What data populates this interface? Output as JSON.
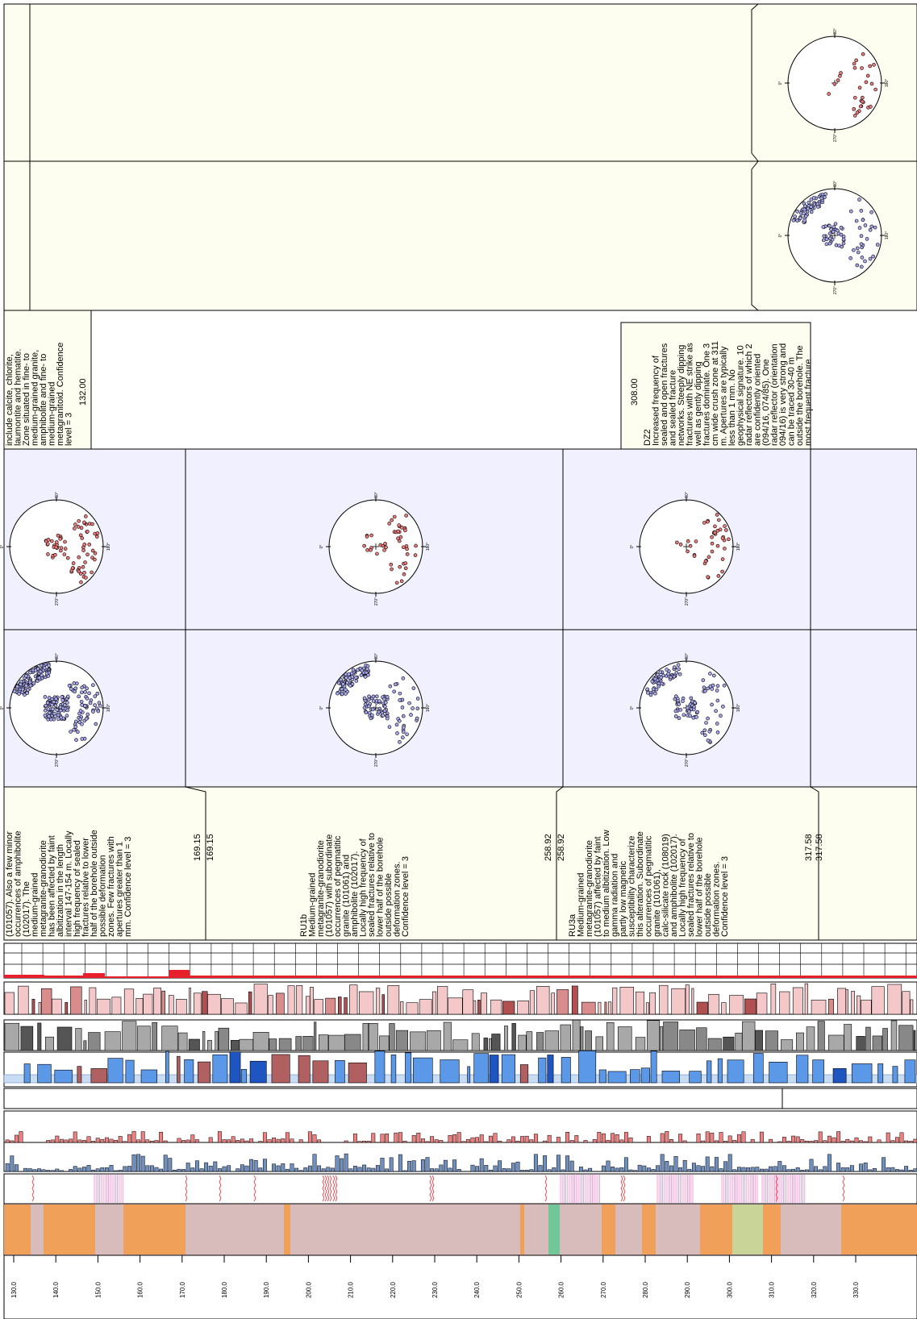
{
  "depth_axis": {
    "ticks": [
      "130.0",
      "140.0",
      "150.0",
      "160.0",
      "170.0",
      "180.0",
      "190.0",
      "200.0",
      "210.0",
      "220.0",
      "230.0",
      "240.0",
      "250.0",
      "260.0",
      "270.0",
      "280.0",
      "290.0",
      "300.0",
      "310.0",
      "320.0",
      "330.0"
    ]
  },
  "stereonet_labels": {
    "n": "90°",
    "e": "180°",
    "s": "270°",
    "w": "0°"
  },
  "rock_units": [
    {
      "lines": [
        "(101057). Also a few minor",
        "occurrences of amphibolite",
        "(102017). The",
        "medium-grained",
        "metagranite-granodiorite",
        "has been affected by faint",
        "albitization in the length",
        "interval 147-154 m. Locally",
        "high frequency of sealed",
        "fractures relative to lower",
        "half of the borehole outside",
        "possible deformation",
        "zones. Few fractures with",
        "apertures greater than 1",
        "mm. Confidence level = 3"
      ],
      "depth_a": "169.15",
      "depth_b": "169.15"
    },
    {
      "lines": [
        "RU1b",
        "Medium-grained",
        "metagranite-granodiorite",
        "(101057) with subordinate",
        "occurrences of pegmatitic",
        "granite (101061) and",
        "amphibolite (102017).",
        "Locally high frequency of",
        "sealed fractures relative to",
        "lower half of the borehole",
        "outside possible",
        "deformation zones.",
        "Confidence level = 3"
      ],
      "depth_a": "258.92",
      "depth_b": "258.92"
    },
    {
      "lines": [
        "RU3a",
        "Medium-grained",
        "metagranite-granodiorite",
        "(101057) affected by faint",
        "to medium albitization. Low",
        "gamma radiation and",
        "partly low magnetic",
        "susceptibility characterize",
        "this alteration. Subordinate",
        "occurrences of pegmatitic",
        "granite (101061),",
        "calc-silicate rock (108019)",
        "and amphibolite (102017).",
        "Locally high frequency of",
        "sealed fractures relative to",
        "lower half of the borehole",
        "outside possible",
        "deformation zones.",
        "Confidence level = 3"
      ],
      "depth_a": "317.58",
      "depth_b": "317.58"
    }
  ],
  "deformation_zones": [
    {
      "lines": [
        "include calcite, chlorite,",
        "laumontite and hematite.",
        "Zone situated in fine- to",
        "medium-grained granite,",
        "amphibolite and fine- to",
        "medium-grained",
        "metagranitoid. Confidence",
        "level = 3"
      ],
      "depth": "132.00"
    },
    {
      "depth": "308.00",
      "lines": [
        "DZ2",
        "Increased frequency of",
        "sealed and open fractures",
        "and sealed fracture",
        "networks. Steeply dipping",
        "fractures with NE strike as",
        "well as gently dipping",
        "fractures dominate. One 3",
        "cm wide crush zone at 311",
        "m. Apertures are typically",
        "less than 1 mm. No",
        "geophysical signature. 10",
        "radar reflectors of which 2",
        "are confidently oriented",
        "(094/16, 074/85). One",
        "radar reflector (orientation",
        "094/16) is very strong and",
        "can be traced 30-40 m",
        "outside the borehole. The",
        "most frequent fracture"
      ]
    }
  ],
  "colors": {
    "frame": "#000000",
    "panel_bg": "#f0f0fe",
    "note_bg": "#fefef0",
    "lith_orange": "#f0a058",
    "lith_mauve": "#d8bcbc",
    "lith_green": "#70c898",
    "lith_olive": "#c8d498",
    "pink_zone": "#f088cc",
    "red_mark": "#e8202c",
    "bar_blue": "#7090c0",
    "bar_red": "#f08080",
    "blue_fill": "#5b98e8",
    "brown_fill": "#b06060",
    "gray_fill": "#a0a0a0",
    "pink_fill": "#f4c8c8",
    "dot_blue": "#a8a8ee",
    "dot_red": "#ee7a7a"
  }
}
